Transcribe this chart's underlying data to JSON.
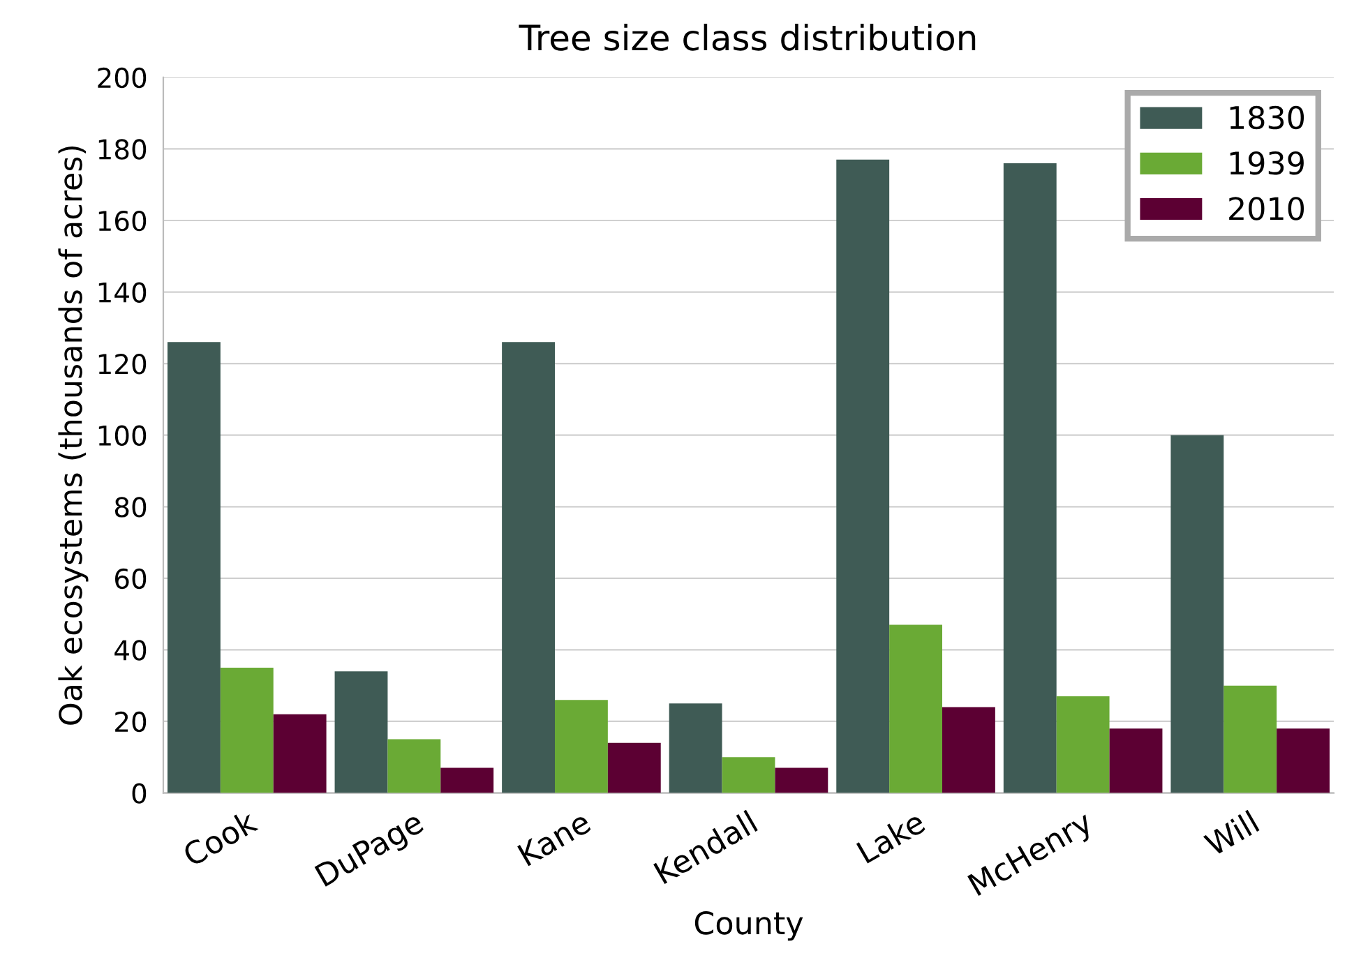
{
  "chart_data": {
    "type": "bar",
    "title": "Tree size class distribution",
    "xlabel": "County",
    "ylabel": "Oak ecosystems (thousands of acres)",
    "categories": [
      "Cook",
      "DuPage",
      "Kane",
      "Kendall",
      "Lake",
      "McHenry",
      "Will"
    ],
    "series": [
      {
        "name": "1830",
        "color": "#3f5b55",
        "values": [
          126,
          34,
          126,
          25,
          177,
          176,
          100
        ]
      },
      {
        "name": "1939",
        "color": "#6aaa35",
        "values": [
          35,
          15,
          26,
          10,
          47,
          27,
          30
        ]
      },
      {
        "name": "2010",
        "color": "#5c0033",
        "values": [
          22,
          7,
          14,
          7,
          24,
          18,
          18
        ]
      }
    ],
    "ylim": [
      0,
      200
    ],
    "yticks": [
      0,
      20,
      40,
      60,
      80,
      100,
      120,
      140,
      160,
      180,
      200
    ],
    "grid": "y",
    "legend": "top right"
  }
}
